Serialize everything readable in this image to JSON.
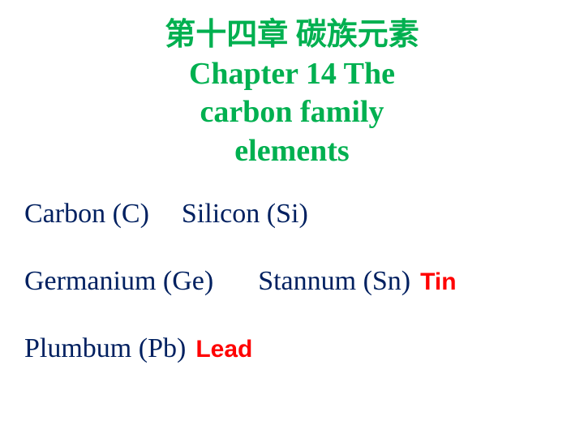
{
  "title": {
    "chinese": "第十四章  碳族元素",
    "english_line1": "Chapter 14  The",
    "english_line2": "carbon family",
    "english_line3": "elements"
  },
  "colors": {
    "title": "#00b050",
    "element": "#002060",
    "note": "#ff0000",
    "background": "#ffffff"
  },
  "row1": {
    "el1": "Carbon (C)",
    "el2": "Silicon (Si)"
  },
  "row2": {
    "el1": "Germanium (Ge)",
    "el2": "Stannum (Sn)",
    "note": "Tin"
  },
  "row3": {
    "el1": "Plumbum (Pb)",
    "note": "Lead"
  }
}
